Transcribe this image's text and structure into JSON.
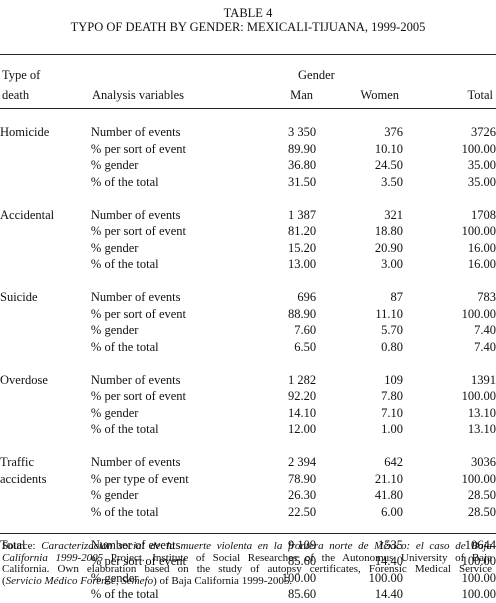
{
  "caption": {
    "label": "TABLE 4",
    "title": "TYPO OF DEATH BY GENDER: MEXICALI-TIJUANA, 1999-2005"
  },
  "header": {
    "type_line1": "Type of",
    "type_line2": "death",
    "variables": "Analysis variables",
    "gender": "Gender",
    "man": "Man",
    "women": "Women",
    "total": "Total"
  },
  "groups": [
    {
      "type_lines": [
        "Homicide"
      ],
      "rows": [
        {
          "variable": "Number of events",
          "man": "3 350",
          "women": "376",
          "total": "3726"
        },
        {
          "variable": "% per sort of event",
          "man": "89.90",
          "women": "10.10",
          "total": "100.00"
        },
        {
          "variable": "% gender",
          "man": "36.80",
          "women": "24.50",
          "total": "35.00"
        },
        {
          "variable": "% of the total",
          "man": "31.50",
          "women": "3.50",
          "total": "35.00"
        }
      ]
    },
    {
      "type_lines": [
        "Accidental"
      ],
      "rows": [
        {
          "variable": "Number of events",
          "man": "1 387",
          "women": "321",
          "total": "1708"
        },
        {
          "variable": "% per sort of event",
          "man": "81.20",
          "women": "18.80",
          "total": "100.00"
        },
        {
          "variable": "% gender",
          "man": "15.20",
          "women": "20.90",
          "total": "16.00"
        },
        {
          "variable": "% of the total",
          "man": "13.00",
          "women": "3.00",
          "total": "16.00"
        }
      ]
    },
    {
      "type_lines": [
        "Suicide"
      ],
      "rows": [
        {
          "variable": "Number of events",
          "man": "696",
          "women": "87",
          "total": "783"
        },
        {
          "variable": "% per sort of event",
          "man": "88.90",
          "women": "11.10",
          "total": "100.00"
        },
        {
          "variable": "% gender",
          "man": "7.60",
          "women": "5.70",
          "total": "7.40"
        },
        {
          "variable": "% of the total",
          "man": "6.50",
          "women": "0.80",
          "total": "7.40"
        }
      ]
    },
    {
      "type_lines": [
        "Overdose"
      ],
      "rows": [
        {
          "variable": "Number of events",
          "man": "1 282",
          "women": "109",
          "total": "1391"
        },
        {
          "variable": "% per sort of event",
          "man": "92.20",
          "women": "7.80",
          "total": "100.00"
        },
        {
          "variable": "% gender",
          "man": "14.10",
          "women": "7.10",
          "total": "13.10"
        },
        {
          "variable": "% of the total",
          "man": "12.00",
          "women": "1.00",
          "total": "13.10"
        }
      ]
    },
    {
      "type_lines": [
        "Traffic",
        "accidents"
      ],
      "rows": [
        {
          "variable": "Number of events",
          "man": "2 394",
          "women": "642",
          "total": "3036"
        },
        {
          "variable": "% per type of event",
          "man": "78.90",
          "women": "21.10",
          "total": "100.00"
        },
        {
          "variable": "% gender",
          "man": "26.30",
          "women": "41.80",
          "total": "28.50"
        },
        {
          "variable": "% of the total",
          "man": "22.50",
          "women": "6.00",
          "total": "28.50"
        }
      ]
    },
    {
      "type_lines": [
        "Total"
      ],
      "rows": [
        {
          "variable": "Number of events",
          "man": "9 109",
          "women": "1535",
          "total": "10644"
        },
        {
          "variable": "% per sort of event",
          "man": "85.60",
          "women": "14.40",
          "total": "100.00"
        },
        {
          "variable": "% gender",
          "man": "100.00",
          "women": "100.00",
          "total": "100.00"
        },
        {
          "variable": "% of the total",
          "man": "85.60",
          "women": "14.40",
          "total": "100.00"
        }
      ]
    }
  ],
  "source": {
    "prefix": "Source: ",
    "title_italic": "Caracterización social de la muerte violenta en la frontera norte de México: el caso de Baja California 1999-2005",
    "text_1": " Project. Institute of Social Researches of the Autonomus University of Baja California. Own elaboration based on the study of autopsy certificates, Forensic Medical Service (",
    "italic_2": "Servicio Médico Forense, Semefo",
    "text_2": ") of Baja California 1999-2005."
  }
}
